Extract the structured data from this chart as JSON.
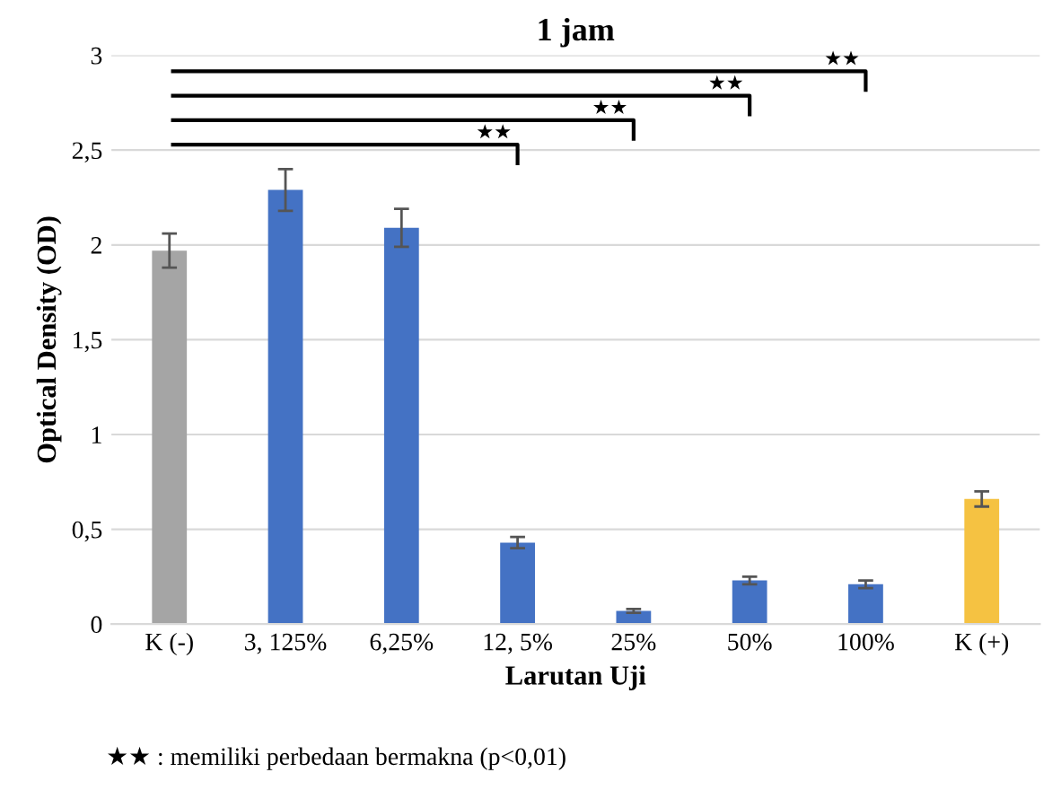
{
  "chart_data": {
    "type": "bar",
    "title": "1 jam",
    "xlabel": "Larutan Uji",
    "ylabel": "Optical Density (OD)",
    "categories": [
      "K (-)",
      "3, 125%",
      "6,25%",
      "12, 5%",
      "25%",
      "50%",
      "100%",
      "K (+)"
    ],
    "values": [
      1.97,
      2.29,
      2.09,
      0.43,
      0.07,
      0.23,
      0.21,
      0.66
    ],
    "errors": [
      0.09,
      0.11,
      0.1,
      0.03,
      0.01,
      0.02,
      0.02,
      0.04
    ],
    "colors": [
      "#a5a5a5",
      "#4472c4",
      "#4472c4",
      "#4472c4",
      "#4472c4",
      "#4472c4",
      "#4472c4",
      "#f5c242"
    ],
    "ylim": [
      0,
      3
    ],
    "yticks": [
      0,
      {
        "value": 0.5,
        "label": "0,5"
      },
      1,
      {
        "value": 1.5,
        "label": "1,5"
      },
      2,
      {
        "value": 2.5,
        "label": "2,5"
      },
      3
    ],
    "grid": "y",
    "annotations": [
      "★★",
      "★★",
      "★★",
      "★★",
      "★★ : memiliki perbedaan bermakna (p<0,01)"
    ]
  }
}
